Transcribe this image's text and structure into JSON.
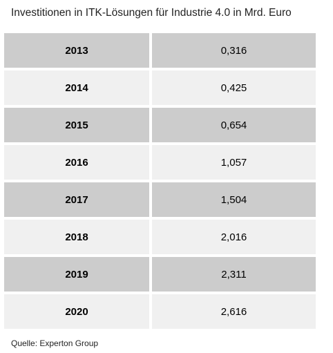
{
  "chart_data": {
    "type": "table",
    "title": "Investitionen in ITK-Lösungen für Industrie 4.0 in Mrd. Euro",
    "rows": [
      {
        "year": "2013",
        "value": "0,316"
      },
      {
        "year": "2014",
        "value": "0,425"
      },
      {
        "year": "2015",
        "value": "0,654"
      },
      {
        "year": "2016",
        "value": "1,057"
      },
      {
        "year": "2017",
        "value": "1,504"
      },
      {
        "year": "2018",
        "value": "2,016"
      },
      {
        "year": "2019",
        "value": "2,311"
      },
      {
        "year": "2020",
        "value": "2,616"
      }
    ],
    "source": "Quelle: Experton Group",
    "colors": {
      "row_dark": "#cccccc",
      "row_light": "#f0f0f0"
    }
  }
}
